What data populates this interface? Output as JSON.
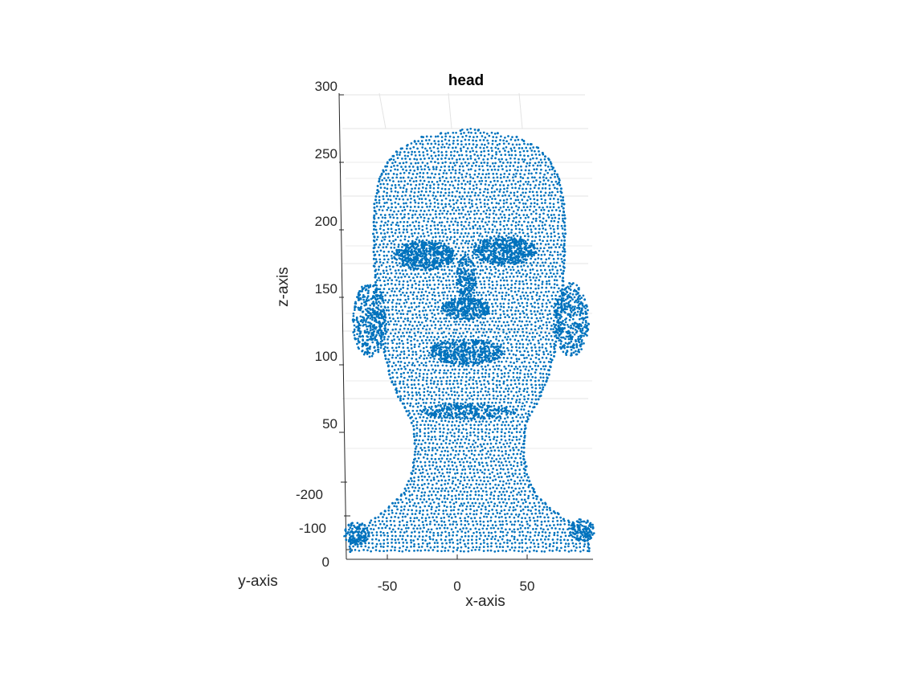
{
  "chart_data": {
    "type": "scatter",
    "title": "head",
    "xlabel": "x-axis",
    "ylabel": "y-axis",
    "zlabel": "z-axis",
    "projection": "3d",
    "grid": true,
    "series_color": "#0072BD",
    "x_ticks": [
      "-50",
      "0",
      "50"
    ],
    "y_ticks": [
      "0",
      "-100",
      "-200"
    ],
    "z_ticks": [
      "50",
      "100",
      "150",
      "200",
      "250",
      "300"
    ],
    "xlim": [
      -80,
      95
    ],
    "ylim": [
      -240,
      0
    ],
    "zlim": [
      0,
      300
    ]
  }
}
